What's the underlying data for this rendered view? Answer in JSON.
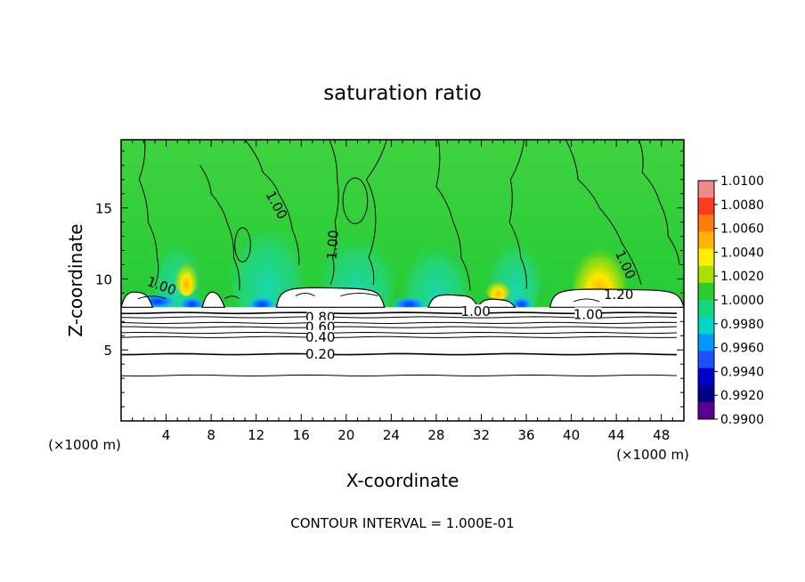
{
  "chart_data": {
    "type": "heatmap",
    "title": "saturation ratio",
    "xlabel": "X-coordinate",
    "ylabel": "Z-coordinate",
    "x_unit_left": "(×1000 m)",
    "x_unit_right": "(×1000 m)",
    "xlim": [
      0,
      50
    ],
    "ylim": [
      0,
      19.8
    ],
    "x_ticks": [
      4,
      8,
      12,
      16,
      20,
      24,
      28,
      32,
      36,
      40,
      44,
      48
    ],
    "y_ticks": [
      5,
      10,
      15
    ],
    "footer": "CONTOUR INTERVAL = 1.000E-01",
    "colorbar": {
      "min": 0.99,
      "max": 1.01,
      "labels": [
        "1.0100",
        "1.0080",
        "1.0060",
        "1.0040",
        "1.0020",
        "1.0000",
        "0.9980",
        "0.9960",
        "0.9940",
        "0.9920",
        "0.9900"
      ],
      "colors": [
        "#f08a8a",
        "#ff3a1e",
        "#ff7a10",
        "#ffb400",
        "#ffee00",
        "#aadd00",
        "#2ccc2c",
        "#16d67c",
        "#00d6c8",
        "#0098ff",
        "#2050ff",
        "#0000cc",
        "#000088",
        "#5a0090"
      ]
    },
    "contour_labels": [
      {
        "text": "1.00",
        "x": 13.8,
        "y": 15.2,
        "rot": 62
      },
      {
        "text": "1.00",
        "x": 18.8,
        "y": 12.4,
        "rot": -86
      },
      {
        "text": "1.00",
        "x": 3.6,
        "y": 9.5,
        "rot": 20
      },
      {
        "text": "1.00",
        "x": 44.8,
        "y": 11.0,
        "rot": 65
      },
      {
        "text": "1.20",
        "x": 44.2,
        "y": 8.9,
        "rot": 0
      },
      {
        "text": "1.00",
        "x": 31.5,
        "y": 7.7,
        "rot": 0
      },
      {
        "text": "1.00",
        "x": 41.5,
        "y": 7.5,
        "rot": 0
      },
      {
        "text": "0.80",
        "x": 17.7,
        "y": 7.3,
        "rot": 0
      },
      {
        "text": "0.60",
        "x": 17.7,
        "y": 6.6,
        "rot": 0
      },
      {
        "text": "0.40",
        "x": 17.7,
        "y": 5.9,
        "rot": 0
      },
      {
        "text": "0.20",
        "x": 17.7,
        "y": 4.7,
        "rot": 0
      }
    ],
    "horizontal_contours_y": [
      3.2,
      4.7,
      5.9,
      6.2,
      6.6,
      6.9,
      7.3,
      7.6
    ],
    "cloud_base_y": 8.0
  }
}
